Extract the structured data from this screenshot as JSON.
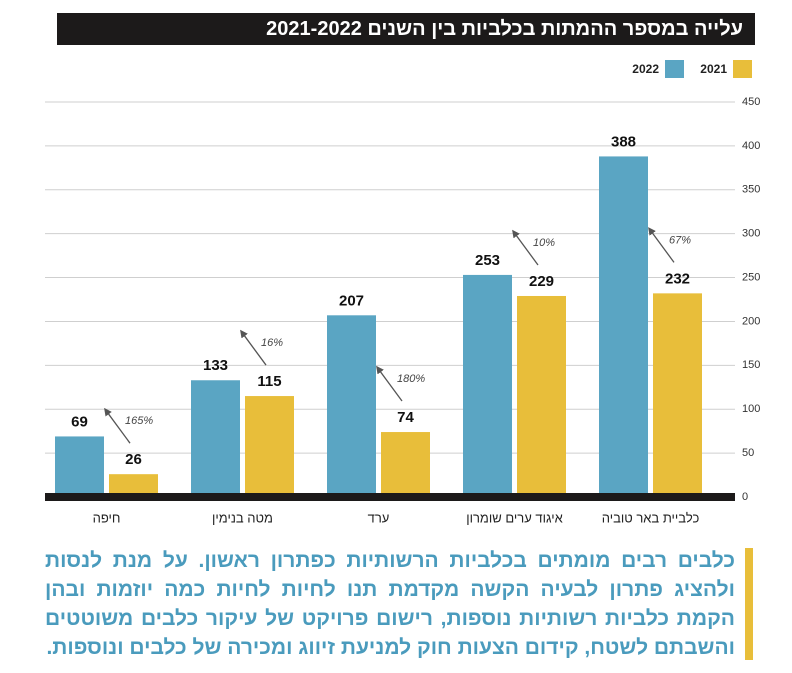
{
  "chart_data": {
    "type": "bar",
    "title": "עלייה במספר ההמתות בכלביות בין השנים 2021-2022",
    "categories": [
      "חיפה",
      "מטה בנימין",
      "ערד",
      "איגוד ערים שומרון",
      "כלביית באר טוביה"
    ],
    "series": [
      {
        "name": "2022",
        "color": "#5aa5c3",
        "values": [
          69,
          133,
          207,
          253,
          388
        ]
      },
      {
        "name": "2021",
        "color": "#e8be3a",
        "values": [
          26,
          115,
          74,
          229,
          232
        ]
      }
    ],
    "annotations": [
      "165%",
      "16%",
      "180%",
      "10%",
      "67%"
    ],
    "ylim": [
      0,
      450
    ],
    "yticks": [
      0,
      50,
      100,
      150,
      200,
      250,
      300,
      350,
      400,
      450
    ],
    "grid": true,
    "caption": "כלבים רבים מומתים בכלביות הרשותיות כפתרון ראשון. על מנת לנסות ולהציג פתרון לבעיה הקשה מקדמת תנו לחיות לחיות כמה יוזמות ובהן הקמת כלביות רשותיות נוספות, רישום פרויקט של עיקור כלבים משוטטים והשבתם לשטח, קידום הצעות חוק למניעת זיווג ומכירה של כלבים ונוספות."
  }
}
